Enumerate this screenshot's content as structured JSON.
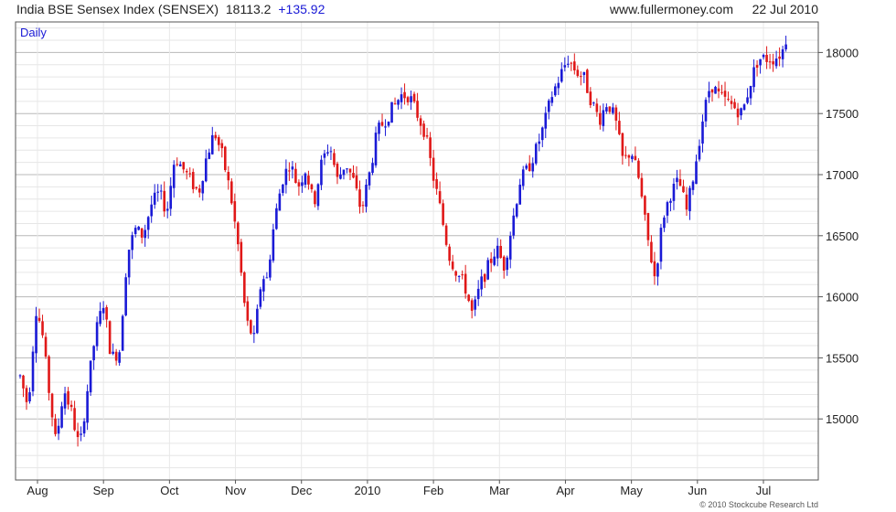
{
  "header": {
    "title": "India BSE Sensex Index (SENSEX)",
    "last": "18113.2",
    "change": "+135.92",
    "site": "www.fullermoney.com",
    "date": "22 Jul 2010"
  },
  "chart_data": {
    "type": "candlestick",
    "interval_label": "Daily",
    "x_tick_labels": [
      "Aug",
      "Sep",
      "Oct",
      "Nov",
      "Dec",
      "2010",
      "Feb",
      "Mar",
      "Apr",
      "May",
      "Jun",
      "Jul"
    ],
    "y_ticks": [
      15000,
      15500,
      16000,
      16500,
      17000,
      17500,
      18000
    ],
    "ylim": [
      14500,
      18250
    ],
    "grid": true,
    "up_color": "#1a1ad6",
    "down_color": "#e01818",
    "path_x_range": [
      0,
      100
    ],
    "path": [
      [
        0.0,
        15350
      ],
      [
        1.0,
        15100
      ],
      [
        2.0,
        15900
      ],
      [
        2.7,
        15750
      ],
      [
        3.5,
        15300
      ],
      [
        4.5,
        14800
      ],
      [
        5.5,
        15250
      ],
      [
        6.5,
        15050
      ],
      [
        7.5,
        14750
      ],
      [
        8.5,
        15250
      ],
      [
        9.5,
        15700
      ],
      [
        10.5,
        15950
      ],
      [
        11.5,
        15500
      ],
      [
        12.5,
        15550
      ],
      [
        13.5,
        16350
      ],
      [
        14.5,
        16550
      ],
      [
        15.5,
        16500
      ],
      [
        16.5,
        16750
      ],
      [
        17.5,
        16850
      ],
      [
        18.5,
        16700
      ],
      [
        19.5,
        17150
      ],
      [
        20.5,
        17050
      ],
      [
        21.5,
        16950
      ],
      [
        22.5,
        16850
      ],
      [
        23.5,
        17150
      ],
      [
        24.5,
        17350
      ],
      [
        25.5,
        17150
      ],
      [
        26.5,
        16850
      ],
      [
        27.5,
        16400
      ],
      [
        28.5,
        15800
      ],
      [
        29.5,
        15650
      ],
      [
        30.5,
        16200
      ],
      [
        31.0,
        16100
      ],
      [
        32.0,
        16600
      ],
      [
        33.0,
        16950
      ],
      [
        34.0,
        17100
      ],
      [
        35.0,
        16900
      ],
      [
        36.0,
        17050
      ],
      [
        37.0,
        16750
      ],
      [
        38.0,
        17100
      ],
      [
        39.0,
        17250
      ],
      [
        40.0,
        16950
      ],
      [
        41.0,
        17100
      ],
      [
        42.0,
        16950
      ],
      [
        43.0,
        16700
      ],
      [
        44.0,
        17000
      ],
      [
        45.0,
        17350
      ],
      [
        46.0,
        17450
      ],
      [
        47.0,
        17550
      ],
      [
        48.0,
        17650
      ],
      [
        49.0,
        17650
      ],
      [
        50.0,
        17500
      ],
      [
        51.0,
        17350
      ],
      [
        52.0,
        17000
      ],
      [
        53.0,
        16700
      ],
      [
        54.0,
        16350
      ],
      [
        55.0,
        16200
      ],
      [
        56.0,
        16100
      ],
      [
        57.0,
        15850
      ],
      [
        58.0,
        16100
      ],
      [
        59.0,
        16250
      ],
      [
        60.0,
        16400
      ],
      [
        61.0,
        16250
      ],
      [
        62.0,
        16600
      ],
      [
        63.0,
        16950
      ],
      [
        64.0,
        17050
      ],
      [
        65.0,
        17200
      ],
      [
        66.0,
        17400
      ],
      [
        67.0,
        17650
      ],
      [
        68.0,
        17800
      ],
      [
        69.0,
        17950
      ],
      [
        70.0,
        17850
      ],
      [
        71.0,
        17800
      ],
      [
        72.0,
        17600
      ],
      [
        73.0,
        17450
      ],
      [
        74.0,
        17600
      ],
      [
        75.0,
        17450
      ],
      [
        76.0,
        17100
      ],
      [
        77.0,
        17200
      ],
      [
        78.0,
        16950
      ],
      [
        79.0,
        16500
      ],
      [
        80.0,
        16150
      ],
      [
        81.0,
        16650
      ],
      [
        82.0,
        16850
      ],
      [
        83.0,
        16950
      ],
      [
        84.0,
        16700
      ],
      [
        85.0,
        17050
      ],
      [
        86.0,
        17450
      ],
      [
        87.0,
        17750
      ],
      [
        88.0,
        17650
      ],
      [
        89.0,
        17600
      ],
      [
        90.0,
        17550
      ],
      [
        91.0,
        17500
      ],
      [
        92.0,
        17750
      ],
      [
        93.0,
        17950
      ],
      [
        94.0,
        17950
      ],
      [
        95.0,
        17950
      ],
      [
        96.0,
        18000
      ],
      [
        96.5,
        18110
      ]
    ]
  },
  "footer": {
    "copyright": "© 2010 Stockcube Research Ltd"
  }
}
